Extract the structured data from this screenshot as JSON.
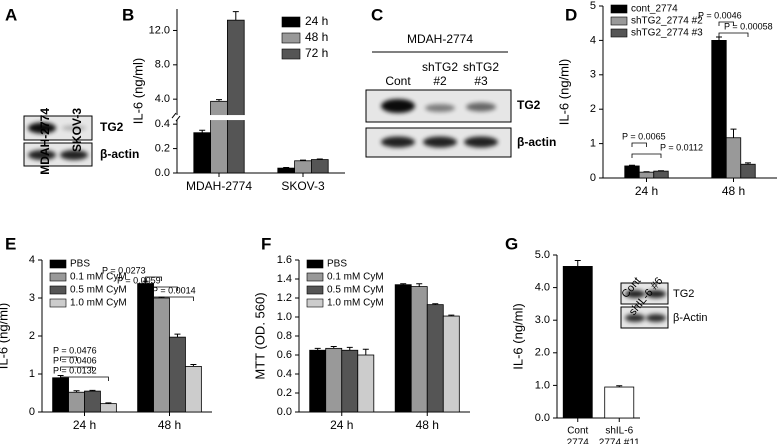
{
  "panel_letters": [
    "A",
    "B",
    "C",
    "D",
    "E",
    "F",
    "G"
  ],
  "blots": [
    {
      "columns": [
        "MDAH-2774",
        "SKOV-3"
      ],
      "rows": [
        "TG2",
        "β-actin"
      ]
    },
    {
      "header": "MDAH-2774",
      "columns": [
        [
          "Cont"
        ],
        [
          "shTG2",
          "#2"
        ],
        [
          "shTG2",
          "#3"
        ]
      ],
      "rows": [
        "TG2",
        "β-actin"
      ]
    },
    {
      "columns": [
        "Cont",
        "shIL-6 #6"
      ],
      "rows": [
        "TG2",
        "β-Actin"
      ]
    }
  ],
  "chart_data": [
    {
      "type": "bar",
      "ylabel": "IL-6 (ng/ml)",
      "categories": [
        "MDAH-2774",
        "SKOV-3"
      ],
      "series": [
        {
          "name": "24 h",
          "color": "#000000",
          "values": [
            0.33,
            0.04
          ],
          "errors": [
            0.02,
            0.005
          ]
        },
        {
          "name": "48 h",
          "color": "#999999",
          "values": [
            3.75,
            0.1
          ],
          "errors": [
            0.2,
            0.005
          ]
        },
        {
          "name": "72 h",
          "color": "#555555",
          "values": [
            13.2,
            0.11
          ],
          "errors": [
            1.0,
            0.005
          ]
        }
      ],
      "ylim": [
        0,
        14.5
      ],
      "axis_break": [
        0.45,
        1.8
      ],
      "yticks": [
        {
          "value": 0,
          "label": "0.0"
        },
        0.2,
        0.4,
        {
          "value": 4,
          "label": "4.0"
        },
        {
          "value": 8,
          "label": "8.0"
        },
        {
          "value": 12,
          "label": "12.0"
        }
      ]
    },
    {
      "type": "bar",
      "ylabel": "IL-6 (ng/ml)",
      "categories": [
        "24 h",
        "48 h"
      ],
      "series": [
        {
          "name": "cont_2774",
          "color": "#000000",
          "values": [
            0.35,
            4.0
          ],
          "errors": [
            0.02,
            0.1
          ]
        },
        {
          "name": "shTG2_2774 #2",
          "color": "#999999",
          "values": [
            0.17,
            1.17
          ],
          "errors": [
            0.01,
            0.25
          ]
        },
        {
          "name": "shTG2_2774 #3",
          "color": "#555555",
          "values": [
            0.2,
            0.4
          ],
          "errors": [
            0.01,
            0.04
          ]
        }
      ],
      "ylim": [
        0,
        5
      ],
      "yticks": [
        0,
        1,
        2,
        3,
        4,
        5
      ],
      "annotations": [
        "P = 0.0065",
        "P = 0.0112",
        "P = 0.0046",
        "P = 0.00058"
      ]
    },
    {
      "type": "bar",
      "ylabel": "IL-6 (ng/ml)",
      "categories": [
        "24 h",
        "48 h"
      ],
      "series": [
        {
          "name": "PBS",
          "color": "#000000",
          "values": [
            0.9,
            3.38
          ],
          "errors": [
            0.06,
            0.06
          ]
        },
        {
          "name": "0.1 mM CyM",
          "color": "#999999",
          "values": [
            0.52,
            3.0
          ],
          "errors": [
            0.04,
            0.02
          ]
        },
        {
          "name": "0.5 mM CyM",
          "color": "#555555",
          "values": [
            0.55,
            1.97
          ],
          "errors": [
            0.02,
            0.08
          ]
        },
        {
          "name": "1.0 mM CyM",
          "color": "#cccccc",
          "values": [
            0.22,
            1.2
          ],
          "errors": [
            0.02,
            0.05
          ]
        }
      ],
      "ylim": [
        0,
        4
      ],
      "yticks": [
        0,
        1,
        2,
        3,
        4
      ],
      "annotations": [
        "P = 0.0476",
        "P = 0.0406",
        "P = 0.0132",
        "P = 0.0273",
        "P = 0.0059",
        "P = 0.0014"
      ]
    },
    {
      "type": "bar",
      "ylabel": "MTT (OD. 560)",
      "categories": [
        "24 h",
        "48 h"
      ],
      "series": [
        {
          "name": "PBS",
          "color": "#000000",
          "values": [
            0.65,
            1.34
          ],
          "errors": [
            0.02,
            0.01
          ]
        },
        {
          "name": "0.1 mM CyM",
          "color": "#999999",
          "values": [
            0.67,
            1.32
          ],
          "errors": [
            0.02,
            0.03
          ]
        },
        {
          "name": "0.5 mM CyM",
          "color": "#555555",
          "values": [
            0.65,
            1.13
          ],
          "errors": [
            0.03,
            0.01
          ]
        },
        {
          "name": "1.0 mM CyM",
          "color": "#cccccc",
          "values": [
            0.6,
            1.01
          ],
          "errors": [
            0.06,
            0.01
          ]
        }
      ],
      "ylim": [
        0,
        1.6
      ],
      "yticks": [
        {
          "value": 0,
          "label": "0.0"
        },
        0.2,
        0.4,
        0.6,
        0.8,
        {
          "value": 1,
          "label": "1.0"
        },
        1.2,
        1.4,
        1.6
      ]
    },
    {
      "type": "bar",
      "ylabel": "IL-6 (ng/ml)",
      "categories": [
        [
          "Cont",
          "2774"
        ],
        [
          "shIL-6",
          "2774 #11"
        ]
      ],
      "values": [
        4.65,
        0.95
      ],
      "errors": [
        0.18,
        0.04
      ],
      "colors": [
        "#000000",
        "#ffffff"
      ],
      "ylim": [
        0,
        5
      ],
      "yticks": [
        {
          "value": 0,
          "label": "0.0"
        },
        {
          "value": 1,
          "label": "1.0"
        },
        {
          "value": 2,
          "label": "2.0"
        },
        {
          "value": 3,
          "label": "3.0"
        },
        {
          "value": 4,
          "label": "4.0"
        },
        {
          "value": 5,
          "label": "5.0"
        }
      ]
    }
  ]
}
